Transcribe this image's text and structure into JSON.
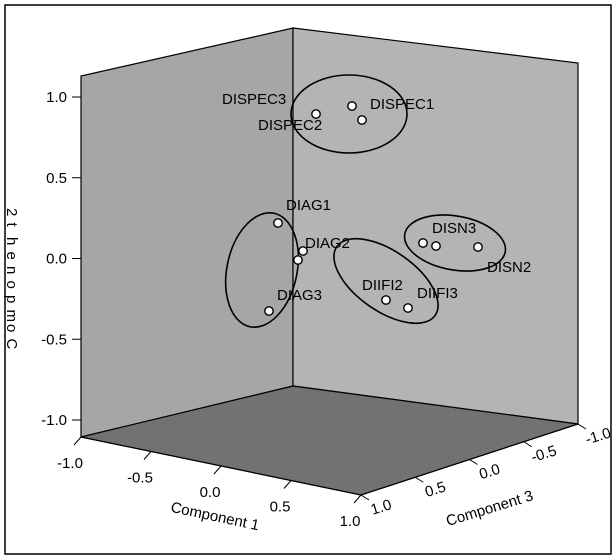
{
  "chart_data": {
    "type": "scatter",
    "projection": "3d",
    "title": "",
    "axes": {
      "x": {
        "label": "Component 1",
        "ticks": [
          "-1.0",
          "-0.5",
          "0.0",
          "0.5",
          "1.0"
        ],
        "range": [
          -1.0,
          1.0
        ]
      },
      "y": {
        "label": "Component 3",
        "ticks": [
          "1.0",
          "0.5",
          "0.0",
          "-0.5",
          "-1.0"
        ],
        "range": [
          -1.0,
          1.0
        ]
      },
      "z": {
        "label": "Component 2",
        "label_as_rendered": "2 t h e n o p m o C",
        "ticks": [
          "1.0",
          "0.5",
          "0.0",
          "-0.5",
          "-1.0"
        ],
        "range": [
          -1.0,
          1.0
        ]
      }
    },
    "points": [
      {
        "label": "DISPEC3",
        "x": 0.35,
        "y": 0.2,
        "z": 0.85
      },
      {
        "label": "DISPEC1",
        "x": 0.8,
        "y": 0.85,
        "z": 0.9
      },
      {
        "label": "DISPEC2",
        "x": 0.7,
        "y": 0.2,
        "z": 0.75
      },
      {
        "label": "DIAG1",
        "x": -0.05,
        "y": 0.1,
        "z": 0.2
      },
      {
        "label": "DIAG2",
        "x": 0.75,
        "y": 0.3,
        "z": 0.0
      },
      {
        "label": "DIAG3",
        "x": -0.3,
        "y": 0.0,
        "z": -0.35
      },
      {
        "label": "DIIFI2",
        "x": 0.9,
        "y": 0.75,
        "z": -0.3
      },
      {
        "label": "DIIFI3",
        "x": 0.95,
        "y": 0.95,
        "z": -0.35
      },
      {
        "label": "DISN3",
        "x": 0.95,
        "y": 0.95,
        "z": 0.05
      },
      {
        "label": "DISN2",
        "x": 0.8,
        "y": 0.85,
        "z": 0.0
      }
    ],
    "grid": false,
    "legend": "none",
    "colors": {
      "left_wall": "#a6a6a6",
      "right_wall": "#b4b4b4",
      "floor": "#727272",
      "background": "#ffffff",
      "marker": "#ffffff"
    }
  }
}
